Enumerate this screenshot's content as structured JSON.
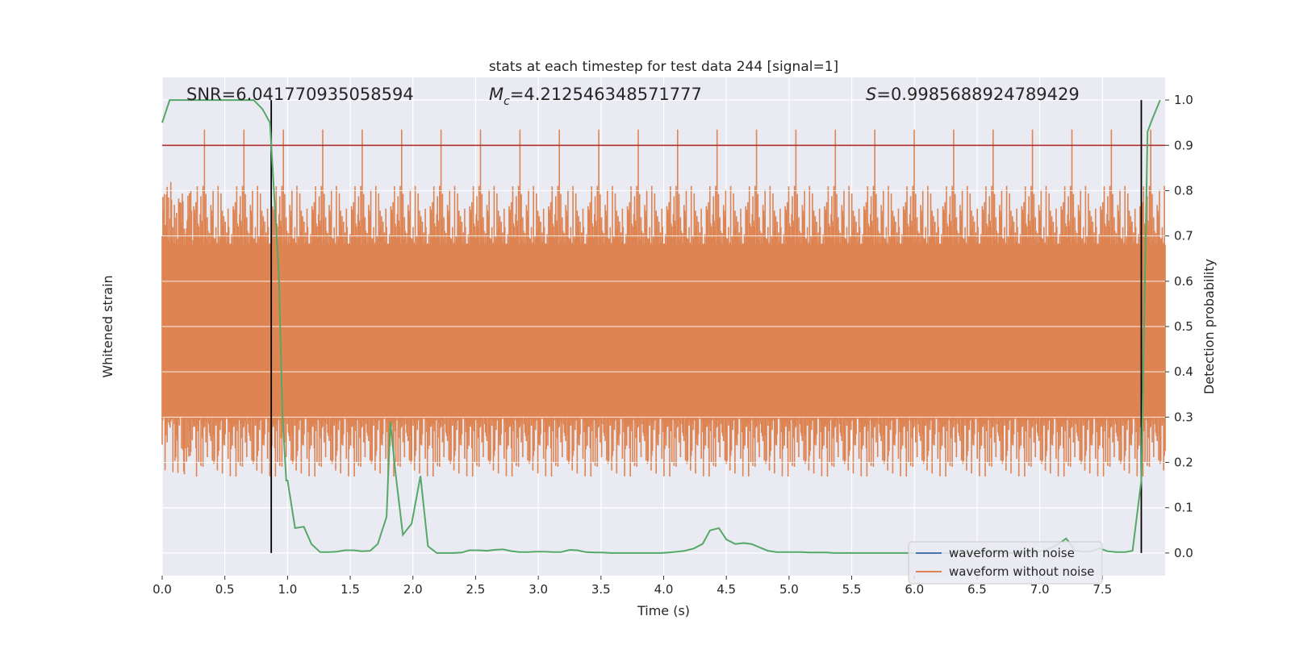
{
  "chart_data": {
    "type": "line",
    "title": "stats at each timestep for test data 244 [signal=1]",
    "xlabel": "Time (s)",
    "ylabel_left": "Whitened strain",
    "ylabel_right": "Detection probability",
    "xlim": [
      0,
      8
    ],
    "ylim_right": [
      -0.05,
      1.05
    ],
    "x_ticks": [
      "0.0",
      "0.5",
      "1.0",
      "1.5",
      "2.0",
      "2.5",
      "3.0",
      "3.5",
      "4.0",
      "4.5",
      "5.0",
      "5.5",
      "6.0",
      "6.5",
      "7.0",
      "7.5"
    ],
    "y_ticks_right": [
      "0.0",
      "0.1",
      "0.2",
      "0.3",
      "0.4",
      "0.5",
      "0.6",
      "0.7",
      "0.8",
      "0.9",
      "1.0"
    ],
    "grid": true,
    "background": "#eaeaf2",
    "annotations": {
      "snr_prefix": "SNR=",
      "snr_value": "6.041770935058594",
      "mc_symbol": "M",
      "mc_sub": "c",
      "mc_value": "=4.212546348571777",
      "s_symbol": "S",
      "s_value": "=0.9985688924789429"
    },
    "threshold": {
      "value": 0.9,
      "color": "#b03030"
    },
    "vertical_markers": [
      0.87,
      7.81
    ],
    "noise_band": {
      "center": 0.49,
      "halfwidth": 0.19,
      "spike_max": 0.98,
      "spike_min": 0.0,
      "color": "#dd8452"
    },
    "probability_series": {
      "name": "",
      "color": "#55a868",
      "x": [
        0.0,
        0.06,
        0.13,
        0.2,
        0.26,
        0.33,
        0.4,
        0.46,
        0.53,
        0.6,
        0.66,
        0.73,
        0.8,
        0.86,
        0.9,
        0.93,
        0.96,
        0.99,
        1.0,
        1.06,
        1.13,
        1.19,
        1.26,
        1.33,
        1.39,
        1.46,
        1.53,
        1.59,
        1.66,
        1.72,
        1.79,
        1.82,
        1.86,
        1.92,
        1.99,
        2.06,
        2.12,
        2.19,
        2.26,
        2.32,
        2.39,
        2.45,
        2.52,
        2.59,
        2.65,
        2.72,
        2.79,
        2.85,
        2.92,
        2.98,
        3.05,
        3.12,
        3.18,
        3.25,
        3.31,
        3.38,
        3.45,
        3.51,
        3.58,
        3.65,
        3.71,
        3.78,
        3.84,
        3.91,
        3.98,
        4.04,
        4.11,
        4.17,
        4.24,
        4.31,
        4.37,
        4.44,
        4.5,
        4.57,
        4.64,
        4.7,
        4.77,
        4.83,
        4.9,
        4.97,
        5.03,
        5.1,
        5.16,
        5.23,
        5.3,
        5.36,
        5.43,
        5.5,
        5.56,
        5.63,
        5.69,
        5.76,
        5.83,
        5.89,
        5.96,
        6.02,
        6.09,
        6.16,
        6.22,
        6.29,
        6.36,
        6.42,
        6.49,
        6.55,
        6.62,
        6.69,
        6.75,
        6.82,
        6.88,
        6.95,
        7.02,
        7.08,
        7.15,
        7.21,
        7.25,
        7.28,
        7.35,
        7.41,
        7.48,
        7.54,
        7.61,
        7.68,
        7.74,
        7.81,
        7.86,
        7.9,
        7.96
      ],
      "y": [
        0.95,
        1.0,
        1.0,
        1.0,
        1.0,
        1.0,
        1.0,
        1.0,
        1.0,
        1.0,
        1.0,
        1.0,
        0.98,
        0.95,
        0.76,
        0.62,
        0.3,
        0.16,
        0.16,
        0.055,
        0.058,
        0.02,
        0.002,
        0.002,
        0.003,
        0.006,
        0.006,
        0.004,
        0.005,
        0.02,
        0.08,
        0.29,
        0.18,
        0.04,
        0.065,
        0.17,
        0.015,
        0.0,
        0.0,
        0.0,
        0.001,
        0.006,
        0.006,
        0.005,
        0.007,
        0.008,
        0.004,
        0.002,
        0.002,
        0.003,
        0.003,
        0.002,
        0.002,
        0.007,
        0.006,
        0.002,
        0.001,
        0.001,
        0.0,
        0.0,
        0.0,
        0.0,
        0.0,
        0.0,
        0.0,
        0.001,
        0.003,
        0.005,
        0.01,
        0.02,
        0.05,
        0.055,
        0.03,
        0.02,
        0.022,
        0.02,
        0.012,
        0.005,
        0.002,
        0.002,
        0.002,
        0.002,
        0.001,
        0.001,
        0.001,
        0.0,
        0.0,
        0.0,
        0.0,
        0.0,
        0.0,
        0.0,
        0.0,
        0.0,
        0.0,
        0.0,
        0.0,
        0.0,
        0.0,
        0.0,
        0.0,
        0.0,
        0.0,
        0.0,
        0.0,
        0.0,
        0.0,
        0.0,
        0.0,
        0.0,
        0.005,
        0.01,
        0.02,
        0.032,
        0.018,
        0.005,
        0.003,
        0.004,
        0.01,
        0.004,
        0.002,
        0.002,
        0.005,
        0.16,
        0.93,
        0.96,
        1.0
      ]
    },
    "legend": {
      "placement": "lower-right",
      "entries": [
        {
          "label": "waveform with noise",
          "color": "#4c72b0"
        },
        {
          "label": "waveform without noise",
          "color": "#dd8452"
        }
      ]
    }
  }
}
